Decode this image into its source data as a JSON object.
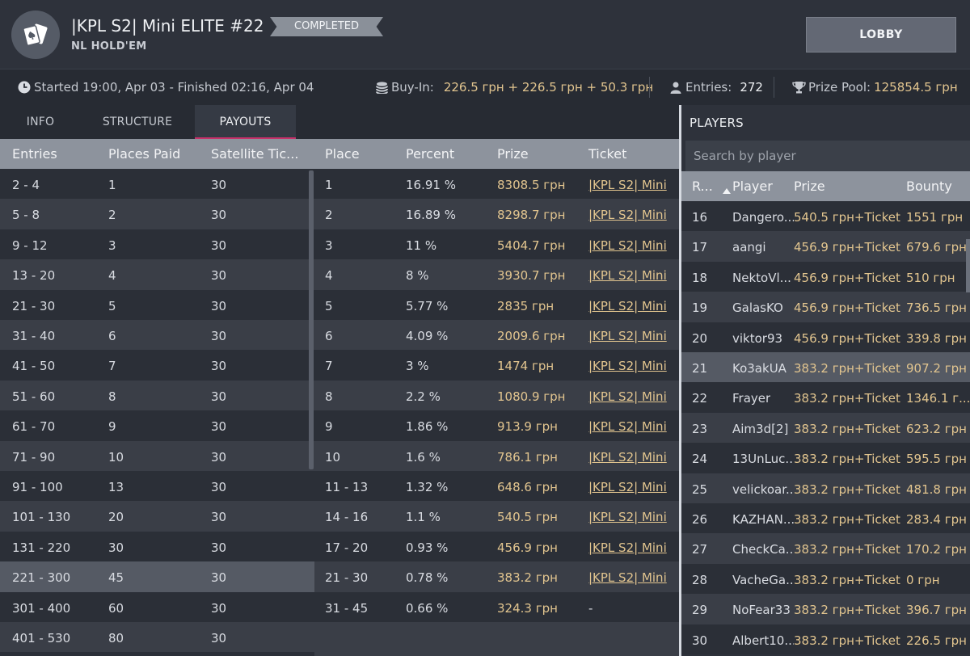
{
  "header": {
    "title": "|KPL S2| Mini ELITE  #22",
    "subtitle": "NL HOLD'EM",
    "status": "COMPLETED",
    "lobby_label": "LOBBY"
  },
  "info": {
    "time_text": "Started 19:00, Apr 03  -  Finished 02:16, Apr 04",
    "buyin_label": "Buy-In:",
    "buyin_value": "226.5 грн + 226.5 грн + 50.3 грн",
    "entries_label": "Entries:",
    "entries_value": "272",
    "prize_label": "Prize Pool:",
    "prize_value": "125854.5 грн"
  },
  "tabs": [
    "INFO",
    "STRUCTURE",
    "PAYOUTS"
  ],
  "entries_table": {
    "headers": [
      "Entries",
      "Places Paid",
      "Satellite Tic..."
    ],
    "rows": [
      [
        "2 - 4",
        "1",
        "30"
      ],
      [
        "5 - 8",
        "2",
        "30"
      ],
      [
        "9 - 12",
        "3",
        "30"
      ],
      [
        "13 - 20",
        "4",
        "30"
      ],
      [
        "21 - 30",
        "5",
        "30"
      ],
      [
        "31 - 40",
        "6",
        "30"
      ],
      [
        "41 - 50",
        "7",
        "30"
      ],
      [
        "51 - 60",
        "8",
        "30"
      ],
      [
        "61 - 70",
        "9",
        "30"
      ],
      [
        "71 - 90",
        "10",
        "30"
      ],
      [
        "91 - 100",
        "13",
        "30"
      ],
      [
        "101 - 130",
        "20",
        "30"
      ],
      [
        "131 - 220",
        "30",
        "30"
      ],
      [
        "221 - 300",
        "45",
        "30"
      ],
      [
        "301 - 400",
        "60",
        "30"
      ],
      [
        "401 - 530",
        "80",
        "30"
      ]
    ]
  },
  "payouts_table": {
    "headers": [
      "Place",
      "Percent",
      "Prize",
      "Ticket"
    ],
    "rows": [
      [
        "1",
        "16.91 %",
        "8308.5 грн",
        "|KPL S2| Mini"
      ],
      [
        "2",
        "16.89 %",
        "8298.7 грн",
        "|KPL S2| Mini"
      ],
      [
        "3",
        "11 %",
        "5404.7 грн",
        "|KPL S2| Mini"
      ],
      [
        "4",
        "8 %",
        "3930.7 грн",
        "|KPL S2| Mini"
      ],
      [
        "5",
        "5.77 %",
        "2835 грн",
        "|KPL S2| Mini"
      ],
      [
        "6",
        "4.09 %",
        "2009.6 грн",
        "|KPL S2| Mini"
      ],
      [
        "7",
        "3 %",
        "1474 грн",
        "|KPL S2| Mini"
      ],
      [
        "8",
        "2.2 %",
        "1080.9 грн",
        "|KPL S2| Mini"
      ],
      [
        "9",
        "1.86 %",
        "913.9 грн",
        "|KPL S2| Mini"
      ],
      [
        "10",
        "1.6 %",
        "786.1 грн",
        "|KPL S2| Mini"
      ],
      [
        "11 - 13",
        "1.32 %",
        "648.6 грн",
        "|KPL S2| Mini"
      ],
      [
        "14 - 16",
        "1.1 %",
        "540.5 грн",
        "|KPL S2| Mini"
      ],
      [
        "17 - 20",
        "0.93 %",
        "456.9 грн",
        "|KPL S2| Mini"
      ],
      [
        "21 - 30",
        "0.78 %",
        "383.2 грн",
        "|KPL S2| Mini"
      ],
      [
        "31 - 45",
        "0.66 %",
        "324.3 грн",
        "-"
      ]
    ]
  },
  "players": {
    "title": "PLAYERS",
    "search_placeholder": "Search by player",
    "headers": [
      "R...",
      "Player",
      "Prize",
      "Bounty"
    ],
    "rows": [
      [
        "16",
        "Dangero...",
        "540.5 грн+Ticket",
        "1551 грн"
      ],
      [
        "17",
        "aangi",
        "456.9 грн+Ticket",
        "679.6 грн"
      ],
      [
        "18",
        "NektoVl...",
        "456.9 грн+Ticket",
        "510 грн"
      ],
      [
        "19",
        "GalasKO",
        "456.9 грн+Ticket",
        "736.5 грн"
      ],
      [
        "20",
        "viktor93",
        "456.9 грн+Ticket",
        "339.8 грн"
      ],
      [
        "21",
        "Ko3akUA",
        "383.2 грн+Ticket",
        "907.2 грн"
      ],
      [
        "22",
        "Frayer",
        "383.2 грн+Ticket",
        "1346.1 г..."
      ],
      [
        "23",
        "Aim3d[2]",
        "383.2 грн+Ticket",
        "623.2 грн"
      ],
      [
        "24",
        "13UnLuc...",
        "383.2 грн+Ticket",
        "595.5 грн"
      ],
      [
        "25",
        "velickoar...",
        "383.2 грн+Ticket",
        "481.8 грн"
      ],
      [
        "26",
        "KAZHAN...",
        "383.2 грн+Ticket",
        "283.4 грн"
      ],
      [
        "27",
        "CheckCa...",
        "383.2 грн+Ticket",
        "170.2 грн"
      ],
      [
        "28",
        "VacheGa...",
        "383.2 грн+Ticket",
        "0 грн"
      ],
      [
        "29",
        "NoFear33",
        "383.2 грн+Ticket",
        "396.7 грн"
      ],
      [
        "30",
        "Albert10...",
        "383.2 грн+Ticket",
        "226.5 грн"
      ]
    ]
  },
  "colors": {
    "accent": "#c7316a",
    "gold": "#e2c58f",
    "header_bar": "#8d939d"
  },
  "icons": [
    "cards-icon",
    "clock-icon",
    "chips-icon",
    "user-icon",
    "trophy-icon",
    "sort-up-icon"
  ]
}
